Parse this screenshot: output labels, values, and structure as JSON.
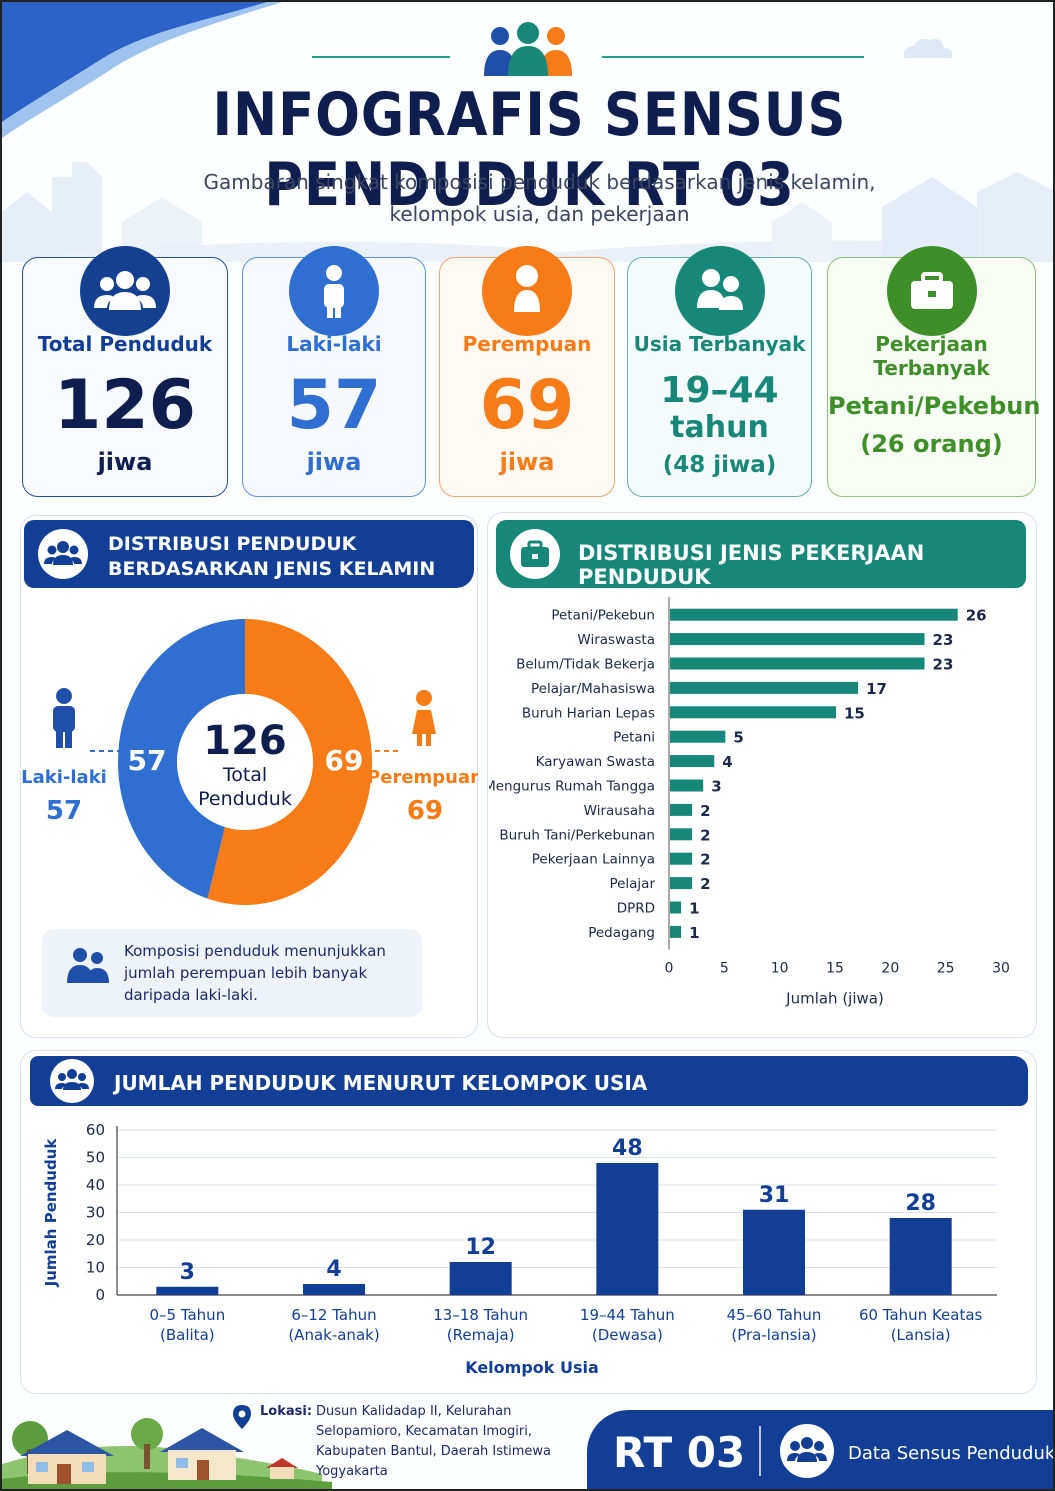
{
  "header": {
    "title": "INFOGRAFIS SENSUS PENDUDUK RT 03",
    "subtitle_line1": "Gambaran singkat komposisi penduduk berdasarkan jenis kelamin,",
    "subtitle_line2": "kelompok usia, dan pekerjaan"
  },
  "stats": {
    "total": {
      "label": "Total Penduduk",
      "value": "126",
      "unit": "jiwa"
    },
    "male": {
      "label": "Laki-laki",
      "value": "57",
      "unit": "jiwa"
    },
    "female": {
      "label": "Perempuan",
      "value": "69",
      "unit": "jiwa"
    },
    "age": {
      "label": "Usia Terbanyak",
      "line1": "19–44",
      "line2": "tahun",
      "line3": "(48 jiwa)"
    },
    "job": {
      "label": "Pekerjaan Terbanyak",
      "line1": "Petani/Pekebun",
      "line2": "(26 orang)"
    }
  },
  "gender_panel": {
    "title_line1": "DISTRIBUSI PENDUDUK",
    "title_line2": "BERDASARKAN JENIS KELAMIN",
    "center_value": "126",
    "center_label1": "Total",
    "center_label2": "Penduduk",
    "male_label": "Laki-laki",
    "male_value": "57",
    "female_label": "Perempuan",
    "female_value": "69",
    "note": "Komposisi penduduk menunjukkan jumlah perempuan lebih banyak daripada laki-laki."
  },
  "job_panel": {
    "title": "DISTRIBUSI JENIS PEKERJAAN PENDUDUK"
  },
  "age_panel": {
    "title": "JUMLAH PENDUDUK MENURUT KELOMPOK USIA"
  },
  "footer": {
    "location_label": "Lokasi:",
    "location_text": "Dusun Kalidadap II, Kelurahan Selopamioro, Kecamatan Imogiri, Kabupaten Bantul, Daerah Istimewa Yogyakarta",
    "rt": "RT 03",
    "caption": "Data Sensus Penduduk"
  },
  "colors": {
    "navy": "#123f95",
    "blue": "#2f6fd1",
    "orange": "#f77b16",
    "teal": "#17877a",
    "green": "#3f8f28"
  },
  "chart_data": [
    {
      "type": "pie",
      "categories": [
        "Laki-laki",
        "Perempuan"
      ],
      "values": [
        57,
        69
      ],
      "colors": [
        "#2f6fd1",
        "#f77b16"
      ],
      "center_total": 126
    },
    {
      "type": "bar",
      "orientation": "horizontal",
      "categories": [
        "Petani/Pekebun",
        "Wiraswasta",
        "Belum/Tidak Bekerja",
        "Pelajar/Mahasiswa",
        "Buruh Harian Lepas",
        "Petani",
        "Karyawan Swasta",
        "Mengurus Rumah Tangga",
        "Wirausaha",
        "Buruh Tani/Perkebunan",
        "Pekerjaan Lainnya",
        "Pelajar",
        "DPRD",
        "Pedagang"
      ],
      "values": [
        26,
        23,
        23,
        17,
        15,
        5,
        4,
        3,
        2,
        2,
        2,
        2,
        1,
        1
      ],
      "xlabel": "Jumlah (jiwa)",
      "xlim": [
        0,
        30
      ],
      "xticks": [
        0,
        5,
        10,
        15,
        20,
        25,
        30
      ],
      "color": "#17877a"
    },
    {
      "type": "bar",
      "categories": [
        [
          "0–5 Tahun",
          "(Balita)"
        ],
        [
          "6–12 Tahun",
          "(Anak-anak)"
        ],
        [
          "13–18 Tahun",
          "(Remaja)"
        ],
        [
          "19–44 Tahun",
          "(Dewasa)"
        ],
        [
          "45–60 Tahun",
          "(Pra-lansia)"
        ],
        [
          "60 Tahun Keatas",
          "(Lansia)"
        ]
      ],
      "values": [
        3,
        4,
        12,
        48,
        31,
        28
      ],
      "xlabel": "Kelompok Usia",
      "ylabel": "Jumlah Penduduk",
      "ylim": [
        0,
        60
      ],
      "yticks": [
        0,
        10,
        20,
        30,
        40,
        50,
        60
      ],
      "grid": true,
      "color": "#123f95"
    }
  ]
}
